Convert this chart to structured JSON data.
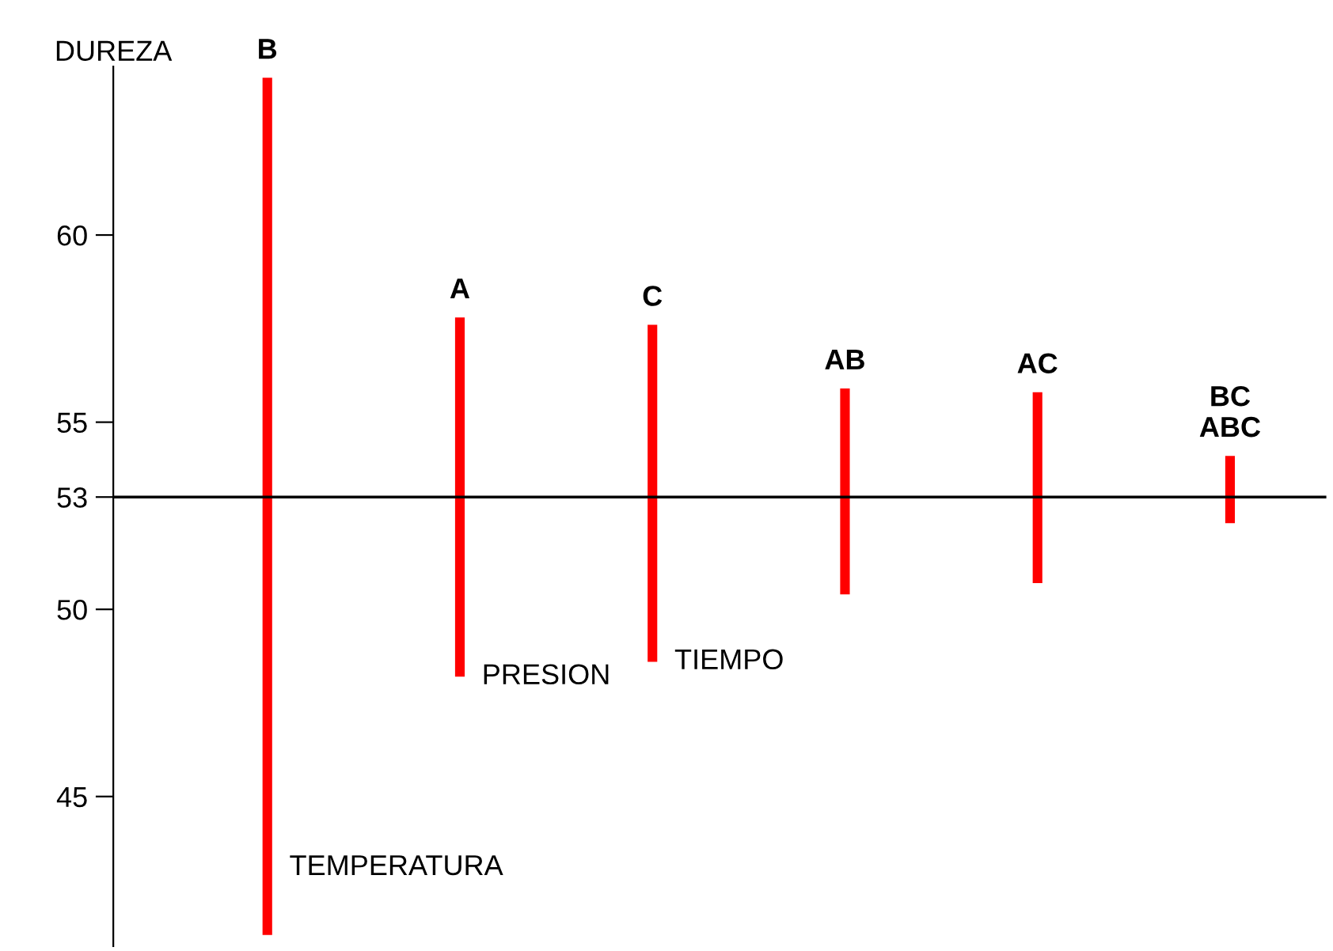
{
  "chart_data": {
    "type": "bar",
    "ylabel": "DUREZA",
    "categories": [
      "B",
      "A",
      "C",
      "AB",
      "AC",
      "BC\nABC"
    ],
    "base": [
      41.3,
      48.2,
      48.6,
      50.4,
      50.7,
      52.3
    ],
    "values": [
      22.9,
      9.6,
      9.0,
      5.5,
      5.1,
      1.8
    ],
    "color": "#ff0000",
    "ylim": [
      41,
      64.5
    ],
    "yticks": [
      45,
      50,
      53,
      55,
      60
    ],
    "ref_lines": [
      {
        "axis": "y",
        "value": 53,
        "color": "#000000"
      }
    ],
    "annotations": [
      {
        "text": "TEMPERATURA",
        "x": "B",
        "y": 43.1
      },
      {
        "text": "PRESION",
        "x": "A",
        "y": 48.2
      },
      {
        "text": "TIEMPO",
        "x": "C",
        "y": 48.6
      }
    ],
    "grid": false
  }
}
